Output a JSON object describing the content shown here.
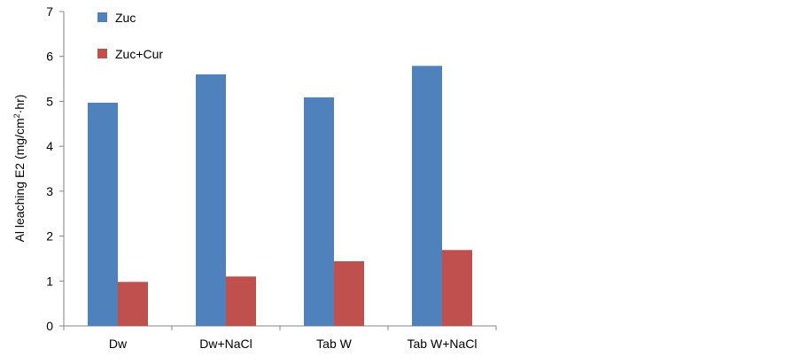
{
  "chart_data": {
    "type": "bar",
    "categories": [
      "Dw",
      "Dw+NaCl",
      "Tab W",
      "Tab W+NaCl"
    ],
    "series": [
      {
        "name": "Zuc",
        "values": [
          4.97,
          5.6,
          5.09,
          5.79
        ],
        "color": "#4F81BD"
      },
      {
        "name": "Zuc+Cur",
        "values": [
          0.98,
          1.1,
          1.44,
          1.69
        ],
        "color": "#C0504D"
      }
    ],
    "ylabel_main": "Al leaching E2 (mg/cm",
    "ylabel_sup": "2",
    "ylabel_tail": "·hr)",
    "ylim": [
      0,
      7
    ],
    "yticks": [
      0,
      1,
      2,
      3,
      4,
      5,
      6,
      7
    ],
    "grid": false,
    "legend_position": "top-left"
  }
}
